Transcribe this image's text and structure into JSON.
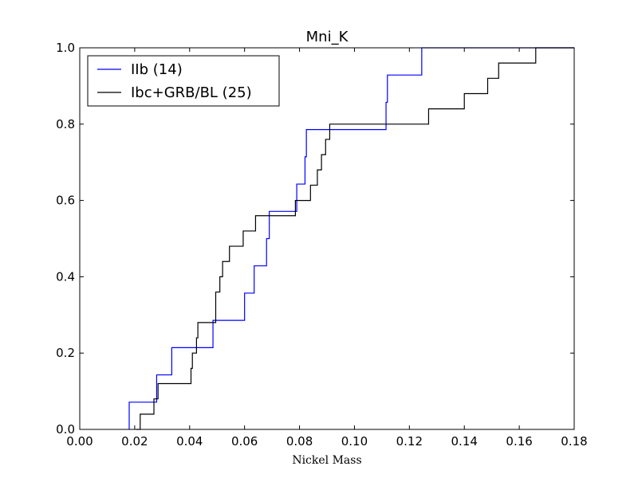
{
  "chart_data": {
    "type": "line",
    "step": true,
    "title": "Mni_K",
    "xlabel": "Nickel Mass",
    "ylabel": "",
    "xlim": [
      0.0,
      0.18
    ],
    "ylim": [
      0.0,
      1.0
    ],
    "xticks": [
      "0.00",
      "0.02",
      "0.04",
      "0.06",
      "0.08",
      "0.10",
      "0.12",
      "0.14",
      "0.16",
      "0.18"
    ],
    "yticks": [
      "0.0",
      "0.2",
      "0.4",
      "0.6",
      "0.8",
      "1.0"
    ],
    "grid": false,
    "legend_position": "top-left",
    "series": [
      {
        "name": "IIb (14)",
        "color": "#0000ff",
        "x": [
          0.018,
          0.028,
          0.0335,
          0.0485,
          0.06,
          0.0635,
          0.068,
          0.069,
          0.079,
          0.082,
          0.0825,
          0.1115,
          0.112,
          0.1245
        ],
        "y": [
          0.0714,
          0.1429,
          0.2143,
          0.2857,
          0.3571,
          0.4286,
          0.5,
          0.5714,
          0.6429,
          0.7143,
          0.7857,
          0.8571,
          0.9286,
          1.0
        ]
      },
      {
        "name": "Ibc+GRB/BL (25)",
        "color": "#000000",
        "x": [
          0.0205,
          0.022,
          0.027,
          0.0285,
          0.0405,
          0.041,
          0.0425,
          0.043,
          0.0495,
          0.051,
          0.052,
          0.0545,
          0.0595,
          0.064,
          0.0785,
          0.084,
          0.0865,
          0.088,
          0.0895,
          0.091,
          0.1125,
          0.127,
          0.14,
          0.1485,
          0.1525,
          0.166
        ],
        "y": [
          0.0,
          0.04,
          0.08,
          0.12,
          0.16,
          0.2,
          0.24,
          0.28,
          0.36,
          0.4,
          0.44,
          0.48,
          0.52,
          0.56,
          0.6,
          0.64,
          0.68,
          0.72,
          0.76,
          0.8,
          0.8,
          0.84,
          0.88,
          0.92,
          0.96,
          1.0
        ]
      }
    ]
  }
}
